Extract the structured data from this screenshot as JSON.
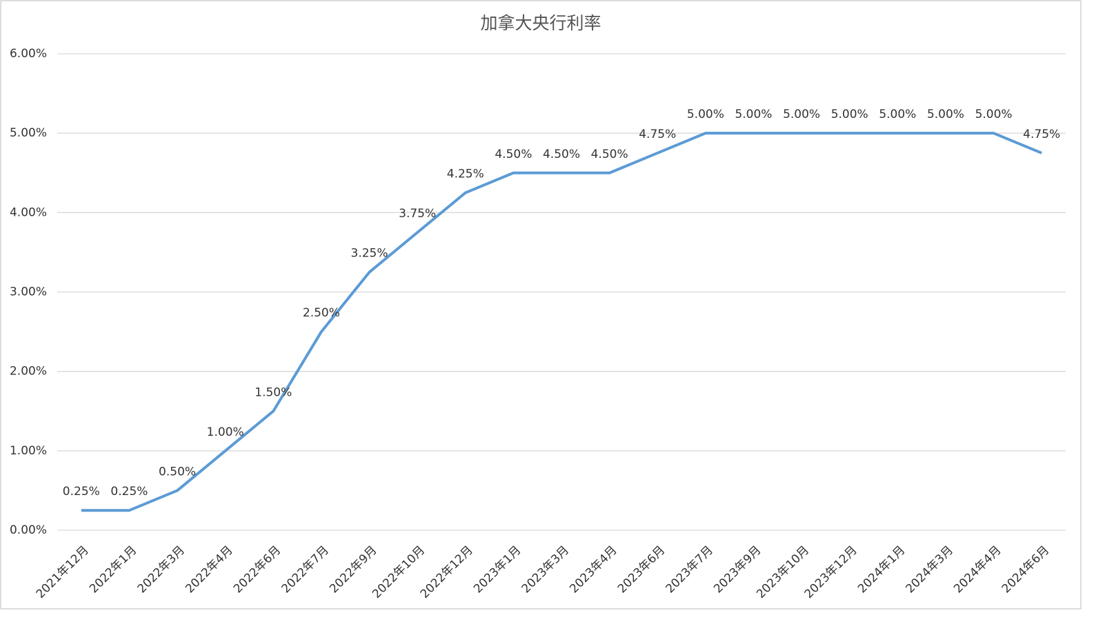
{
  "chart_data": {
    "type": "line",
    "title": "加拿大央行利率",
    "categories": [
      "2021年12月",
      "2022年1月",
      "2022年3月",
      "2022年4月",
      "2022年6月",
      "2022年7月",
      "2022年9月",
      "2022年10月",
      "2022年12月",
      "2023年1月",
      "2023年3月",
      "2023年4月",
      "2023年6月",
      "2023年7月",
      "2023年9月",
      "2023年10月",
      "2023年12月",
      "2024年1月",
      "2024年3月",
      "2024年4月",
      "2024年6月"
    ],
    "series": [
      {
        "name": "加拿大央行利率",
        "color": "#5b9bd5",
        "values": [
          0.25,
          0.25,
          0.5,
          1.0,
          1.5,
          2.5,
          3.25,
          3.75,
          4.25,
          4.5,
          4.5,
          4.5,
          4.75,
          5.0,
          5.0,
          5.0,
          5.0,
          5.0,
          5.0,
          5.0,
          4.75
        ],
        "value_labels": [
          "0.25%",
          "0.25%",
          "0.50%",
          "1.00%",
          "1.50%",
          "2.50%",
          "3.25%",
          "3.75%",
          "4.25%",
          "4.50%",
          "4.50%",
          "4.50%",
          "4.75%",
          "5.00%",
          "5.00%",
          "5.00%",
          "5.00%",
          "5.00%",
          "5.00%",
          "5.00%",
          "4.75%"
        ]
      }
    ],
    "ylim": [
      0,
      6
    ],
    "yticks": [
      {
        "value": 0,
        "label": "0.00%"
      },
      {
        "value": 1,
        "label": "1.00%"
      },
      {
        "value": 2,
        "label": "2.00%"
      },
      {
        "value": 3,
        "label": "3.00%"
      },
      {
        "value": 4,
        "label": "4.00%"
      },
      {
        "value": 5,
        "label": "5.00%"
      },
      {
        "value": 6,
        "label": "6.00%"
      }
    ],
    "grid": true
  }
}
